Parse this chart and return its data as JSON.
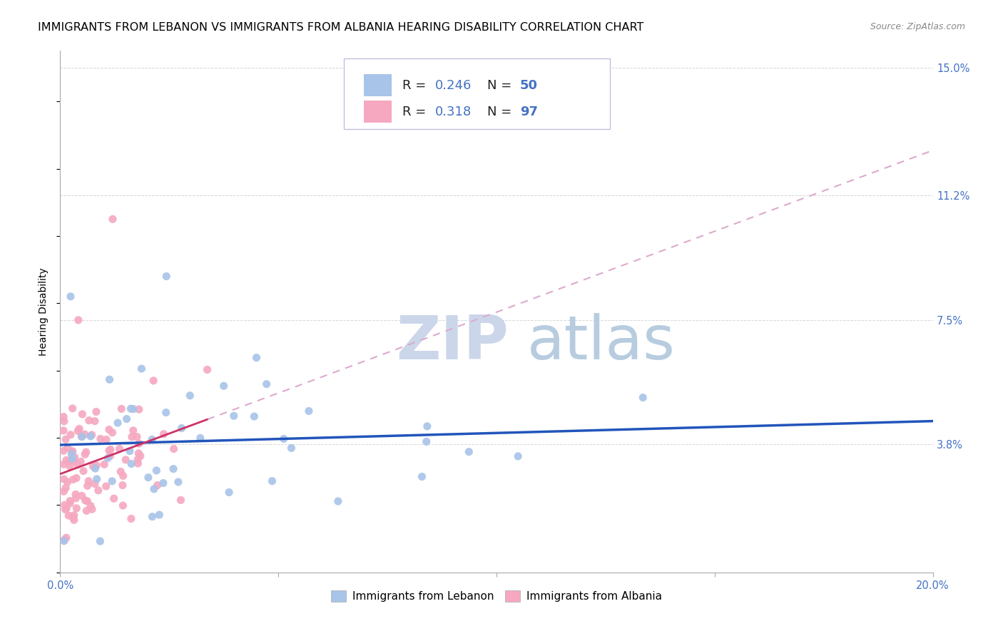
{
  "title": "IMMIGRANTS FROM LEBANON VS IMMIGRANTS FROM ALBANIA HEARING DISABILITY CORRELATION CHART",
  "source": "Source: ZipAtlas.com",
  "ylabel": "Hearing Disability",
  "xlim": [
    0.0,
    0.2
  ],
  "ylim": [
    0.0,
    0.155
  ],
  "ytick_labels_right": [
    "3.8%",
    "7.5%",
    "11.2%",
    "15.0%"
  ],
  "ytick_vals_right": [
    0.038,
    0.075,
    0.112,
    0.15
  ],
  "lebanon_R": 0.246,
  "lebanon_N": 50,
  "albania_R": 0.318,
  "albania_N": 97,
  "lebanon_color": "#a8c4e8",
  "albania_color": "#f5a8c0",
  "lebanon_line_color": "#2255bb",
  "albania_line_color": "#cc3366",
  "albania_dash_color": "#ddaacc",
  "background_color": "#ffffff",
  "grid_color": "#cccccc",
  "watermark_zip_color": "#c8d4e8",
  "watermark_atlas_color": "#b8c8d8",
  "title_fontsize": 11.5,
  "source_fontsize": 9,
  "axis_label_fontsize": 10,
  "tick_fontsize": 10.5,
  "legend_fontsize": 13
}
